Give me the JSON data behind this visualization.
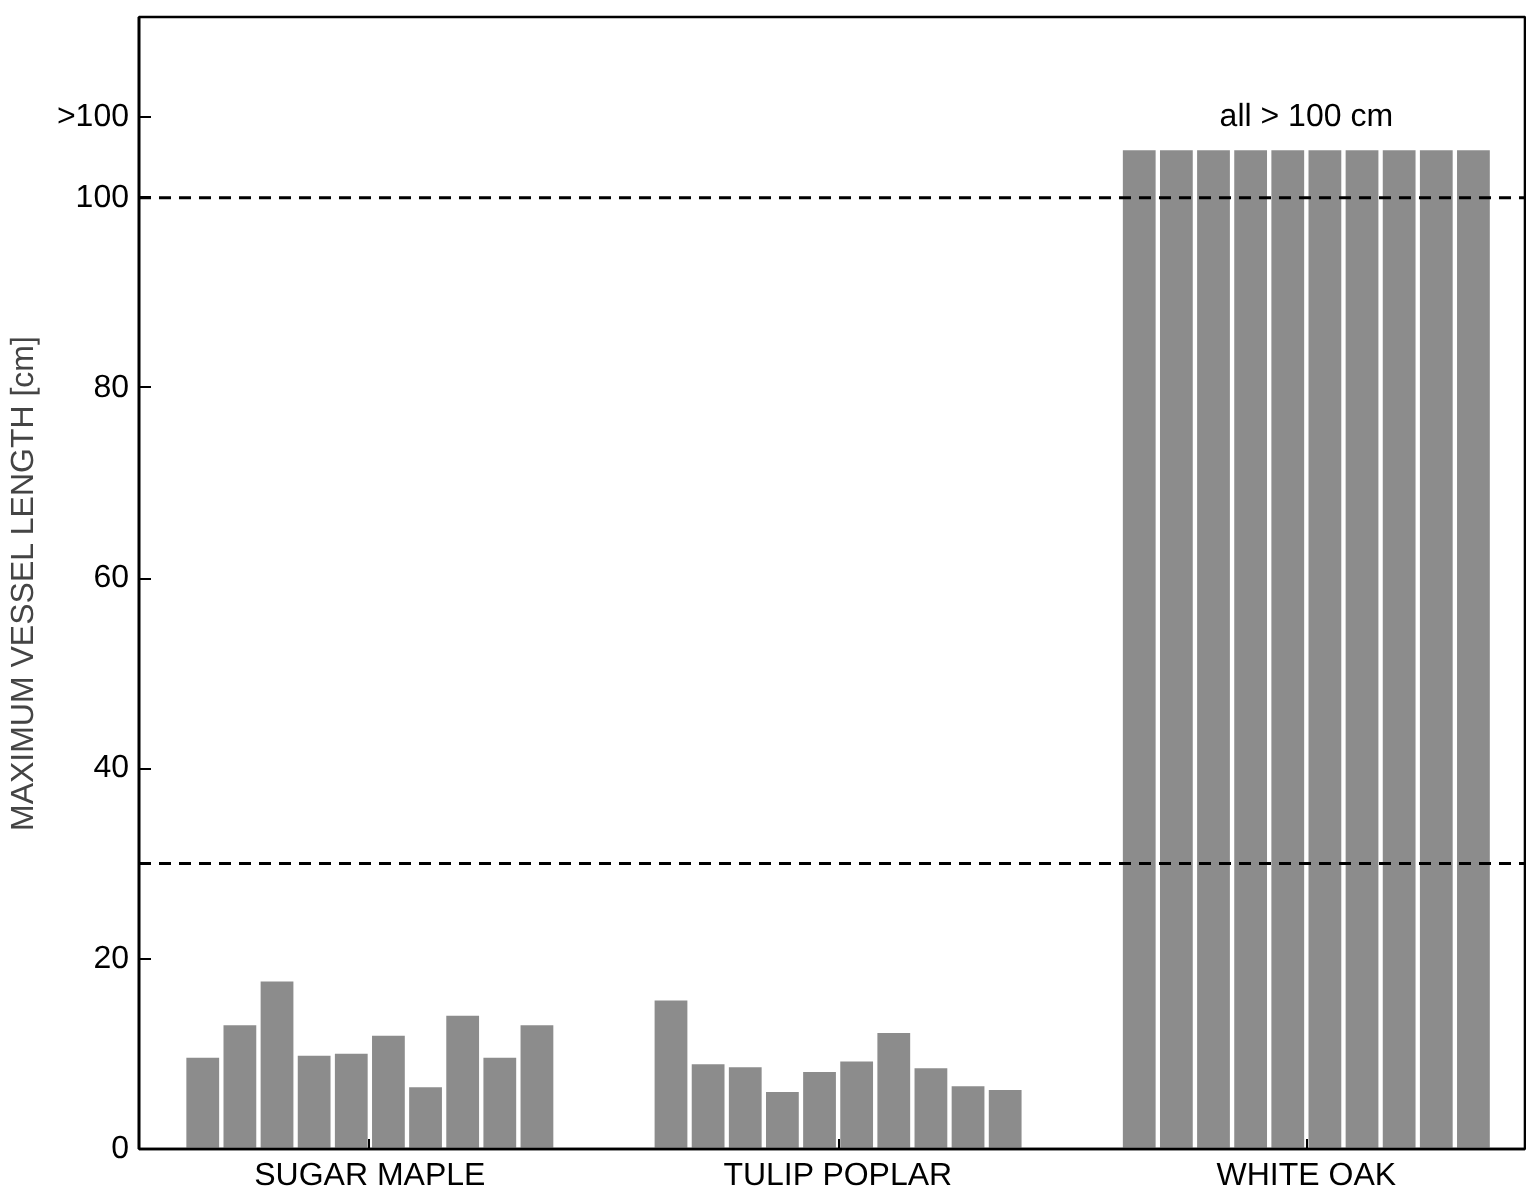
{
  "chart_data": {
    "type": "bar",
    "ylabel": "MAXIMUM VESSEL LENGTH [cm]",
    "categories": [
      "SUGAR MAPLE",
      "TULIP POPLAR",
      "WHITE OAK"
    ],
    "series": [
      {
        "color": "#8c8c8c",
        "values": [
          9.6,
          15.6,
          105
        ]
      },
      {
        "color": "#8c8c8c",
        "values": [
          13.0,
          8.9,
          105
        ]
      },
      {
        "color": "#8c8c8c",
        "values": [
          17.6,
          8.6,
          105
        ]
      },
      {
        "color": "#8c8c8c",
        "values": [
          9.8,
          6.0,
          105
        ]
      },
      {
        "color": "#8c8c8c",
        "values": [
          10.0,
          8.1,
          105
        ]
      },
      {
        "color": "#8c8c8c",
        "values": [
          11.9,
          9.2,
          105
        ]
      },
      {
        "color": "#8c8c8c",
        "values": [
          6.5,
          12.2,
          105
        ]
      },
      {
        "color": "#8c8c8c",
        "values": [
          14.0,
          8.5,
          105
        ]
      },
      {
        "color": "#8c8c8c",
        "values": [
          9.6,
          6.6,
          105
        ]
      },
      {
        "color": "#8c8c8c",
        "values": [
          13.0,
          6.2,
          105
        ]
      }
    ],
    "ylim": [
      0,
      119
    ],
    "yticks": [
      0,
      20,
      40,
      60,
      80,
      100,
      {
        "value": 108.5,
        "label": ">100"
      }
    ],
    "ref_lines": [
      {
        "axis": "y",
        "value": 100,
        "line_style": "dashed",
        "color": "#000000"
      },
      {
        "axis": "y",
        "value": 30,
        "line_style": "dashed",
        "color": "#000000"
      }
    ],
    "annotations": [
      "all > 100 cm"
    ],
    "grid": false
  }
}
